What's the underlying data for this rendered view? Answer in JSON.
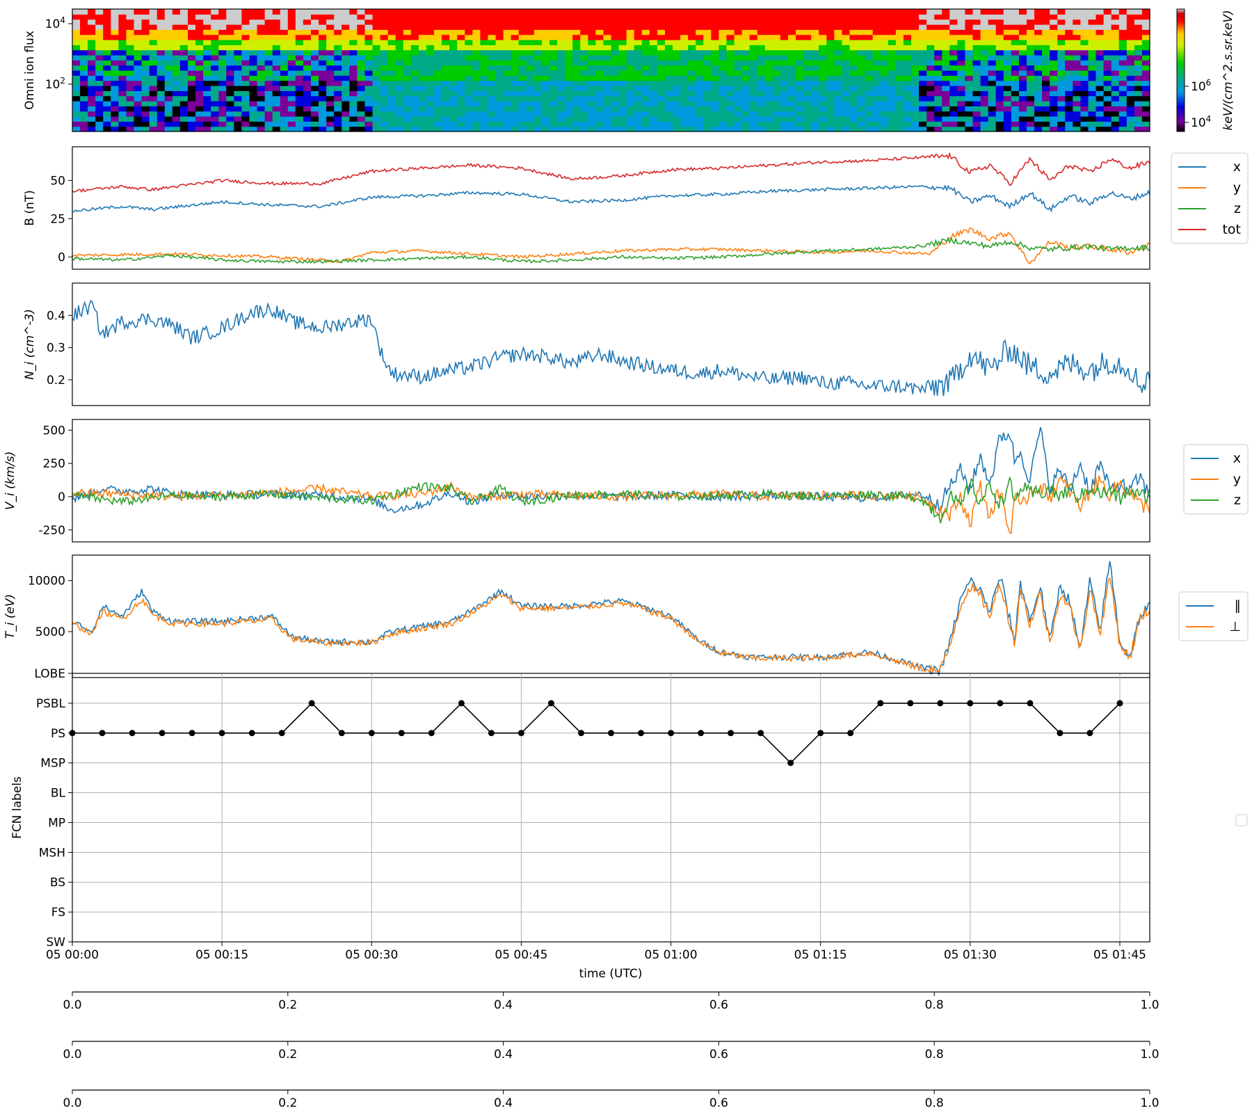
{
  "chart_data": [
    {
      "type": "heatmap",
      "ylabel": "Omni ion flux",
      "ytick_labels": [
        "10^4",
        "10^2"
      ],
      "colorbar": {
        "label": "keV/(cm^2.s.sr.keV)",
        "tick_labels": [
          "10^6",
          "10^4"
        ],
        "colormap": "nipy_spectral"
      },
      "x_range": [
        0,
        108
      ],
      "x_unit": "minutes since 05 00:00"
    },
    {
      "type": "line",
      "ylabel": "B (nT)",
      "ylim": [
        -8,
        72
      ],
      "yticks": [
        0,
        25,
        50
      ],
      "legend_position": "right",
      "series": [
        {
          "name": "x",
          "color": "#1f77b4",
          "x": [
            0,
            5,
            8,
            15,
            20,
            25,
            30,
            35,
            40,
            45,
            50,
            55,
            60,
            65,
            70,
            75,
            80,
            85,
            88,
            90,
            92,
            94,
            96,
            98,
            100,
            102,
            104,
            106,
            108
          ],
          "y": [
            30,
            33,
            31,
            36,
            34,
            33,
            39,
            40,
            42,
            41,
            36,
            37,
            40,
            41,
            43,
            44,
            45,
            46,
            45,
            36,
            40,
            33,
            42,
            31,
            40,
            35,
            42,
            38,
            42
          ]
        },
        {
          "name": "y",
          "color": "#ff7f0e",
          "x": [
            0,
            10,
            20,
            27,
            30,
            35,
            40,
            45,
            50,
            55,
            60,
            65,
            70,
            75,
            80,
            86,
            88,
            90,
            92,
            94,
            95,
            96,
            98,
            100,
            102,
            104,
            106,
            108
          ],
          "y": [
            1,
            2,
            0,
            -3,
            3,
            4,
            2,
            0,
            2,
            4,
            5,
            5,
            4,
            3,
            4,
            2,
            13,
            18,
            12,
            16,
            5,
            -4,
            10,
            6,
            7,
            5,
            3,
            8
          ]
        },
        {
          "name": "z",
          "color": "#2ca02c",
          "x": [
            0,
            5,
            10,
            15,
            20,
            25,
            30,
            35,
            40,
            45,
            50,
            55,
            60,
            65,
            70,
            75,
            80,
            85,
            88,
            90,
            92,
            94,
            96,
            98,
            100,
            102,
            104,
            106,
            108
          ],
          "y": [
            -1,
            -2,
            1,
            -2,
            -3,
            -3,
            -2,
            -1,
            0,
            -3,
            -2,
            0,
            -1,
            0,
            2,
            4,
            5,
            7,
            11,
            9,
            7,
            10,
            6,
            5,
            6,
            7,
            5,
            6,
            6
          ]
        },
        {
          "name": "tot",
          "color": "#d62728",
          "x": [
            0,
            5,
            8,
            15,
            20,
            25,
            30,
            35,
            40,
            45,
            50,
            55,
            60,
            65,
            70,
            75,
            80,
            85,
            88,
            90,
            92,
            94,
            96,
            98,
            100,
            102,
            104,
            106,
            108
          ],
          "y": [
            43,
            46,
            44,
            50,
            48,
            48,
            56,
            58,
            60,
            58,
            51,
            53,
            57,
            58,
            60,
            62,
            63,
            65,
            66,
            55,
            60,
            48,
            64,
            50,
            60,
            55,
            64,
            58,
            62
          ]
        }
      ]
    },
    {
      "type": "line",
      "ylabel": "N_i (cm^-3)",
      "ylim": [
        0.12,
        0.5
      ],
      "yticks": [
        0.2,
        0.3,
        0.4
      ],
      "series": [
        {
          "name": "",
          "color": "#1f77b4",
          "x": [
            0,
            2,
            3,
            5,
            8,
            10,
            12,
            15,
            18,
            20,
            22,
            25,
            28,
            30,
            31,
            32,
            35,
            38,
            40,
            43,
            45,
            48,
            50,
            53,
            55,
            58,
            60,
            63,
            65,
            68,
            70,
            73,
            75,
            78,
            80,
            83,
            85,
            88,
            90,
            92,
            94,
            96,
            98,
            100,
            102,
            104,
            106,
            107,
            108
          ],
          "y": [
            0.4,
            0.43,
            0.34,
            0.38,
            0.39,
            0.37,
            0.33,
            0.36,
            0.41,
            0.42,
            0.38,
            0.36,
            0.38,
            0.39,
            0.28,
            0.22,
            0.21,
            0.23,
            0.24,
            0.27,
            0.28,
            0.27,
            0.25,
            0.28,
            0.26,
            0.24,
            0.23,
            0.22,
            0.23,
            0.21,
            0.2,
            0.21,
            0.19,
            0.19,
            0.18,
            0.18,
            0.17,
            0.19,
            0.28,
            0.23,
            0.3,
            0.24,
            0.22,
            0.25,
            0.23,
            0.26,
            0.24,
            0.18,
            0.22
          ]
        }
      ]
    },
    {
      "type": "line",
      "ylabel": "V_i (km/s)",
      "ylim": [
        -340,
        580
      ],
      "yticks": [
        -250,
        0,
        250,
        500
      ],
      "legend_position": "right",
      "series": [
        {
          "name": "x",
          "color": "#1f77b4",
          "x": [
            0,
            3,
            5,
            8,
            10,
            15,
            20,
            25,
            30,
            32,
            35,
            38,
            40,
            43,
            45,
            50,
            55,
            60,
            65,
            70,
            75,
            80,
            85,
            87,
            88,
            89,
            90,
            91,
            92,
            93,
            94,
            94.5,
            95,
            96,
            97,
            98,
            99,
            100,
            101,
            102,
            103,
            104,
            105,
            106,
            107,
            108
          ],
          "y": [
            -20,
            60,
            40,
            60,
            20,
            10,
            20,
            10,
            -20,
            -100,
            -60,
            30,
            -40,
            20,
            0,
            10,
            0,
            10,
            0,
            10,
            0,
            -10,
            20,
            -50,
            80,
            200,
            60,
            300,
            100,
            450,
            480,
            250,
            350,
            120,
            520,
            60,
            200,
            50,
            250,
            40,
            250,
            50,
            100,
            40,
            150,
            0
          ]
        },
        {
          "name": "y",
          "color": "#ff7f0e",
          "x": [
            0,
            5,
            10,
            15,
            20,
            25,
            30,
            35,
            38,
            40,
            45,
            50,
            55,
            60,
            65,
            70,
            75,
            80,
            85,
            87,
            88,
            89,
            90,
            91,
            92,
            93,
            94,
            94.5,
            95,
            96,
            97,
            98,
            99,
            100,
            101,
            102,
            103,
            104,
            105,
            106,
            107,
            108
          ],
          "y": [
            30,
            20,
            0,
            10,
            30,
            60,
            0,
            20,
            80,
            -10,
            20,
            10,
            0,
            10,
            20,
            0,
            10,
            10,
            0,
            -100,
            -140,
            0,
            -200,
            80,
            -150,
            60,
            -300,
            50,
            -120,
            50,
            80,
            0,
            120,
            40,
            -80,
            40,
            120,
            20,
            100,
            40,
            -60,
            -80
          ]
        },
        {
          "name": "z",
          "color": "#2ca02c",
          "x": [
            0,
            5,
            10,
            15,
            20,
            25,
            30,
            35,
            38,
            40,
            43,
            45,
            50,
            55,
            60,
            65,
            70,
            75,
            80,
            85,
            87,
            88,
            89,
            90,
            91,
            92,
            93,
            94,
            94.5,
            95,
            96,
            97,
            98,
            99,
            100,
            101,
            102,
            103,
            104,
            105,
            106,
            107,
            108
          ],
          "y": [
            10,
            -40,
            10,
            0,
            20,
            -10,
            -30,
            80,
            60,
            -40,
            60,
            -40,
            10,
            20,
            0,
            10,
            20,
            0,
            20,
            -10,
            -150,
            0,
            -80,
            100,
            -40,
            80,
            -50,
            100,
            -60,
            80,
            20,
            30,
            50,
            0,
            60,
            -10,
            80,
            20,
            40,
            -20,
            50,
            0,
            20
          ]
        }
      ]
    },
    {
      "type": "line",
      "ylabel": "T_i (eV)",
      "ylim": [
        500,
        12500
      ],
      "yticks": [
        5000,
        10000
      ],
      "legend_position": "right",
      "series": [
        {
          "name": "∥",
          "color": "#1f77b4",
          "x": [
            0,
            2,
            3,
            5,
            7,
            8,
            10,
            15,
            20,
            22,
            25,
            27,
            30,
            32,
            35,
            38,
            40,
            43,
            45,
            50,
            55,
            57,
            60,
            63,
            65,
            68,
            70,
            75,
            80,
            85,
            87,
            88,
            89,
            90,
            91,
            92,
            93,
            94,
            94.5,
            95,
            96,
            97,
            98,
            99,
            100,
            101,
            102,
            103,
            104,
            105,
            106,
            107,
            108
          ],
          "y": [
            6000,
            5000,
            7500,
            6500,
            9000,
            7000,
            6000,
            6000,
            6500,
            4500,
            4000,
            4000,
            4000,
            5000,
            5500,
            6000,
            7000,
            9000,
            7500,
            7500,
            8000,
            7500,
            6500,
            4000,
            3000,
            2500,
            2500,
            2500,
            3000,
            1500,
            1200,
            4000,
            8000,
            10000,
            9000,
            7000,
            10500,
            6000,
            4000,
            10000,
            6000,
            9500,
            4000,
            9500,
            8000,
            3000,
            10000,
            5000,
            12000,
            4000,
            2500,
            6500,
            7500
          ]
        },
        {
          "name": "⊥",
          "color": "#ff7f0e",
          "x": [
            0,
            2,
            3,
            5,
            7,
            8,
            10,
            15,
            20,
            22,
            25,
            27,
            30,
            32,
            35,
            38,
            40,
            43,
            45,
            50,
            55,
            57,
            60,
            63,
            65,
            68,
            70,
            75,
            80,
            85,
            87,
            88,
            89,
            90,
            91,
            92,
            93,
            94,
            94.5,
            95,
            96,
            97,
            98,
            99,
            100,
            101,
            102,
            103,
            104,
            105,
            106,
            107,
            108
          ],
          "y": [
            5800,
            4800,
            7000,
            6200,
            8200,
            6700,
            5800,
            5800,
            6200,
            4300,
            3900,
            3900,
            3900,
            4800,
            5300,
            5800,
            6800,
            8600,
            7300,
            7300,
            7800,
            7300,
            6300,
            3900,
            2900,
            2400,
            2400,
            2400,
            2900,
            1400,
            1100,
            3800,
            7500,
            9500,
            8500,
            6600,
            9800,
            5700,
            3800,
            9300,
            5700,
            8800,
            3800,
            8800,
            7500,
            2900,
            9300,
            4800,
            10500,
            3800,
            2400,
            6200,
            7200
          ]
        }
      ]
    },
    {
      "type": "line",
      "ylabel": "FCN labels",
      "xlabel": "time (UTC)",
      "categories": [
        "SW",
        "FS",
        "BS",
        "MSH",
        "MP",
        "BL",
        "MSP",
        "PS",
        "PSBL",
        "LOBE"
      ],
      "x_tick_labels": [
        "05 00:00",
        "05 00:15",
        "05 00:30",
        "05 00:45",
        "05 01:00",
        "05 01:15",
        "05 01:30",
        "05 01:45"
      ],
      "grid": true,
      "series": [
        {
          "name": "",
          "color": "#000000",
          "x": [
            0,
            3,
            6,
            9,
            12,
            15,
            18,
            21,
            24,
            27,
            30,
            33,
            36,
            39,
            42,
            45,
            48,
            51,
            54,
            57,
            60,
            63,
            66,
            69,
            72,
            75,
            78,
            81,
            84,
            87,
            90,
            93,
            96,
            99,
            102,
            105
          ],
          "y": [
            "PS",
            "PS",
            "PS",
            "PS",
            "PS",
            "PS",
            "PS",
            "PS",
            "PSBL",
            "PS",
            "PS",
            "PS",
            "PS",
            "PSBL",
            "PS",
            "PS",
            "PSBL",
            "PS",
            "PS",
            "PS",
            "PS",
            "PS",
            "PS",
            "PS",
            "MSP",
            "PS",
            "PS",
            "PSBL",
            "PSBL",
            "PSBL",
            "PSBL",
            "PSBL",
            "PSBL",
            "PS",
            "PS",
            "PSBL"
          ]
        }
      ]
    },
    {
      "type": "line",
      "x_tick_labels": [
        "0.0",
        "0.2",
        "0.4",
        "0.6",
        "0.8",
        "1.0"
      ],
      "series": []
    },
    {
      "type": "line",
      "x_tick_labels": [
        "0.0",
        "0.2",
        "0.4",
        "0.6",
        "0.8",
        "1.0"
      ],
      "series": []
    },
    {
      "type": "line",
      "x_tick_labels": [
        "0.0",
        "0.2",
        "0.4",
        "0.6",
        "0.8",
        "1.0"
      ],
      "series": []
    }
  ]
}
